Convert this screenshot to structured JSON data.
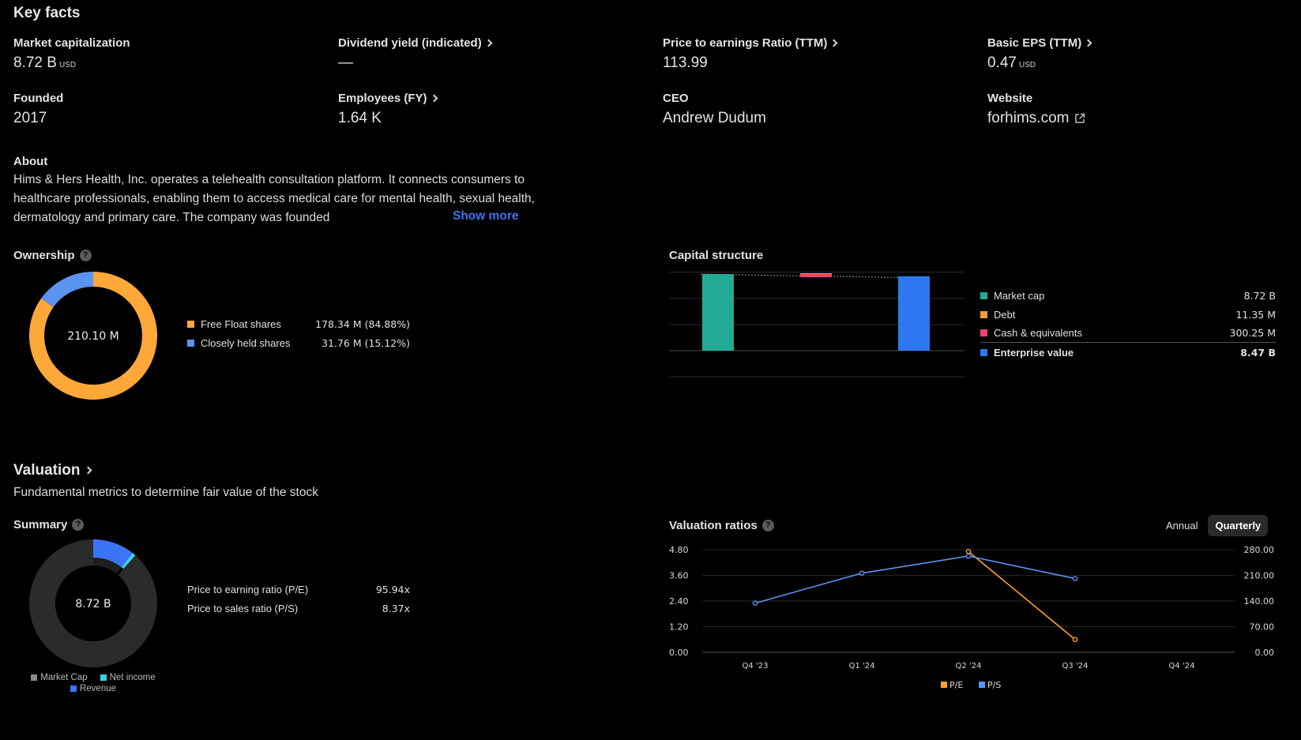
{
  "key_facts": {
    "title": "Key facts",
    "items": [
      {
        "label": "Market capitalization",
        "value": "8.72 B",
        "unit": "USD"
      },
      {
        "label": "Dividend yield (indicated)",
        "value": "—",
        "unit": ""
      },
      {
        "label": "Price to earnings Ratio (TTM)",
        "value": "113.99",
        "unit": ""
      },
      {
        "label": "Basic EPS (TTM)",
        "value": "0.47",
        "unit": "USD"
      },
      {
        "label": "Founded",
        "value": "2017",
        "unit": ""
      },
      {
        "label": "Employees (FY)",
        "value": "1.64 K",
        "unit": ""
      },
      {
        "label": "CEO",
        "value": "Andrew Dudum",
        "unit": ""
      },
      {
        "label": "Website",
        "value": "forhims.com",
        "unit": ""
      }
    ]
  },
  "about": {
    "label": "About",
    "text": "Hims & Hers Health, Inc. operates a telehealth consultation platform. It connects consumers to healthcare professionals, enabling them to access medical care for mental health, sexual health, dermatology and primary care. The company was founded",
    "show_more": "Show more"
  },
  "ownership": {
    "title": "Ownership",
    "center": "210.10 M",
    "legend": [
      {
        "name": "Free Float shares",
        "value": "178.34 M (84.88%)",
        "color": "#ffa83a",
        "fraction": 0.8488
      },
      {
        "name": "Closely held shares",
        "value": "31.76 M (15.12%)",
        "color": "#5b94f0",
        "fraction": 0.1512
      }
    ]
  },
  "capital_structure": {
    "title": "Capital structure",
    "legend": [
      {
        "name": "Market cap",
        "value": "8.72 B",
        "color": "#22ab94"
      },
      {
        "name": "Debt",
        "value": "11.35 M",
        "color": "#ff9f2a"
      },
      {
        "name": "Cash & equivalents",
        "value": "300.25 M",
        "color": "#f23f73"
      },
      {
        "name": "Enterprise value",
        "value": "8.47 B",
        "color": "#2f77f0"
      }
    ]
  },
  "valuation": {
    "title": "Valuation",
    "subtitle": "Fundamental metrics to determine fair value of the stock"
  },
  "summary": {
    "title": "Summary",
    "center": "8.72 B",
    "ratios": [
      {
        "name": "Price to earning ratio (P/E)",
        "value": "95.94x"
      },
      {
        "name": "Price to sales ratio (P/S)",
        "value": "8.37x"
      }
    ],
    "legend": [
      {
        "name": "Market Cap",
        "color": "#8a8a8a"
      },
      {
        "name": "Net income",
        "color": "#3ad0e8"
      },
      {
        "name": "Revenue",
        "color": "#3b74f5"
      }
    ]
  },
  "valuation_ratios": {
    "title": "Valuation ratios",
    "toggle": {
      "annual": "Annual",
      "quarterly": "Quarterly"
    }
  },
  "chart_data": [
    {
      "type": "pie",
      "title": "Ownership",
      "categories": [
        "Free Float shares",
        "Closely held shares"
      ],
      "values": [
        178.34,
        31.76
      ],
      "unit": "M"
    },
    {
      "type": "bar",
      "title": "Capital structure",
      "categories": [
        "Market cap",
        "Debt",
        "Cash & equivalents",
        "Enterprise value"
      ],
      "values": [
        8.72,
        0.01135,
        -0.30025,
        8.47
      ],
      "unit": "B"
    },
    {
      "type": "pie",
      "title": "Summary",
      "categories": [
        "Market Cap",
        "Net income",
        "Revenue"
      ],
      "values": [
        8.72,
        0.09,
        1.04
      ],
      "unit": "B"
    },
    {
      "type": "line",
      "title": "Valuation ratios",
      "x": [
        "Q4 '23",
        "Q1 '24",
        "Q2 '24",
        "Q3 '24",
        "Q4 '24"
      ],
      "series": [
        {
          "name": "P/E",
          "axis": "right",
          "values": [
            null,
            null,
            275,
            35,
            null
          ],
          "color": "#ff9f2a"
        },
        {
          "name": "P/S",
          "axis": "left",
          "values": [
            2.3,
            3.7,
            4.5,
            3.45,
            null
          ],
          "color": "#5b94f0"
        }
      ],
      "y_left_ticks": [
        "4.80",
        "3.60",
        "2.40",
        "1.20",
        "0.00"
      ],
      "y_right_ticks": [
        "280.00",
        "210.00",
        "140.00",
        "70.00",
        "0.00"
      ],
      "ylim_left": [
        0,
        4.8
      ],
      "ylim_right": [
        0,
        280
      ],
      "legend": [
        "P/E",
        "P/S"
      ]
    }
  ]
}
